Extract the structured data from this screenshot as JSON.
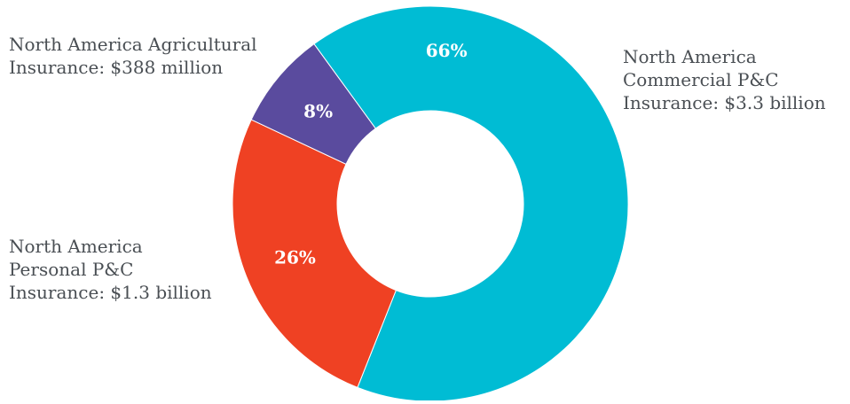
{
  "chart_data": {
    "type": "pie",
    "donut": true,
    "slices": [
      {
        "key": "commercial",
        "label_lines": [
          "North America",
          "Commercial P&C",
          "Insurance: $3.3 billion"
        ],
        "percent": 66,
        "percent_label": "66%",
        "color": "#00bcd4"
      },
      {
        "key": "personal",
        "label_lines": [
          "North America",
          "Personal P&C",
          "Insurance: $1.3 billion"
        ],
        "percent": 26,
        "percent_label": "26%",
        "color": "#ef4123"
      },
      {
        "key": "agri",
        "label_lines": [
          "North America Agricultural",
          "Insurance: $388 million"
        ],
        "percent": 8,
        "percent_label": "8%",
        "color": "#5a4b9e"
      }
    ]
  }
}
